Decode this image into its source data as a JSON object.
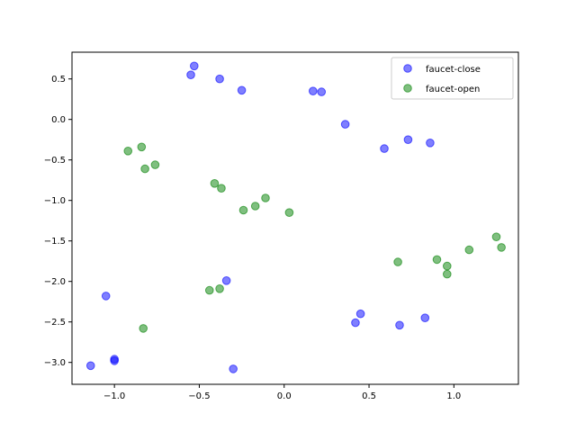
{
  "chart_data": {
    "type": "scatter",
    "xlim": [
      -1.25,
      1.38
    ],
    "ylim": [
      -3.27,
      0.83
    ],
    "xticks": [
      -1.0,
      -0.5,
      0.0,
      0.5,
      1.0
    ],
    "xtick_labels": [
      "−1.0",
      "−0.5",
      "0.0",
      "0.5",
      "1.0"
    ],
    "yticks": [
      0.5,
      0.0,
      -0.5,
      -1.0,
      -1.5,
      -2.0,
      -2.5,
      -3.0
    ],
    "ytick_labels": [
      "0.5",
      "0.0",
      "−0.5",
      "−1.0",
      "−1.5",
      "−2.0",
      "−2.5",
      "−3.0"
    ],
    "grid": false,
    "legend_position": "top-right",
    "series": [
      {
        "name": "faucet-close",
        "color": "#0000ff",
        "x": [
          -0.53,
          -0.55,
          -0.38,
          -0.25,
          0.17,
          0.22,
          0.36,
          0.59,
          0.73,
          0.86,
          -1.05,
          -0.34,
          0.45,
          0.42,
          0.68,
          0.83,
          -1.0,
          -1.0,
          -1.14,
          -0.3
        ],
        "y": [
          0.66,
          0.55,
          0.5,
          0.36,
          0.35,
          0.34,
          -0.06,
          -0.36,
          -0.25,
          -0.29,
          -2.18,
          -1.99,
          -2.4,
          -2.51,
          -2.54,
          -2.45,
          -2.96,
          -2.98,
          -3.04,
          -3.08
        ]
      },
      {
        "name": "faucet-open",
        "color": "#008000",
        "x": [
          -0.92,
          -0.84,
          -0.82,
          -0.76,
          -0.41,
          -0.37,
          -0.11,
          -0.17,
          -0.24,
          0.03,
          1.25,
          1.28,
          1.09,
          0.9,
          0.96,
          0.96,
          0.67,
          -0.44,
          -0.38,
          -0.83
        ],
        "y": [
          -0.39,
          -0.34,
          -0.61,
          -0.56,
          -0.79,
          -0.85,
          -0.97,
          -1.07,
          -1.12,
          -1.15,
          -1.45,
          -1.58,
          -1.61,
          -1.73,
          -1.81,
          -1.91,
          -1.76,
          -2.11,
          -2.09,
          -2.58
        ]
      }
    ]
  }
}
